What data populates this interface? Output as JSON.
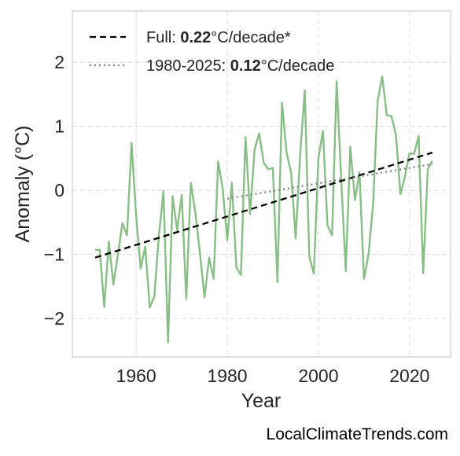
{
  "chart_data": {
    "type": "line",
    "xlabel": "Year",
    "ylabel": "Anomaly (°C)",
    "xlim": [
      1946,
      2029
    ],
    "ylim": [
      -2.6,
      2.8
    ],
    "xticks": [
      1960,
      1980,
      2000,
      2020
    ],
    "yticks": [
      -2,
      -1,
      0,
      1,
      2
    ],
    "ytick_labels": [
      "−2",
      "−1",
      "0",
      "1",
      "2"
    ],
    "grid": true,
    "legend_position": "top-left",
    "series": [
      {
        "type": "line",
        "color": "#88bd86",
        "x": [
          1951,
          1952,
          1953,
          1954,
          1955,
          1956,
          1957,
          1958,
          1959,
          1960,
          1961,
          1962,
          1963,
          1964,
          1965,
          1966,
          1967,
          1968,
          1969,
          1970,
          1971,
          1972,
          1973,
          1974,
          1975,
          1976,
          1977,
          1978,
          1979,
          1980,
          1981,
          1982,
          1983,
          1984,
          1985,
          1986,
          1987,
          1988,
          1989,
          1990,
          1991,
          1992,
          1993,
          1994,
          1995,
          1996,
          1997,
          1998,
          1999,
          2000,
          2001,
          2002,
          2003,
          2004,
          2005,
          2006,
          2007,
          2008,
          2009,
          2010,
          2011,
          2012,
          2013,
          2014,
          2015,
          2016,
          2017,
          2018,
          2019,
          2020,
          2021,
          2022,
          2023,
          2024,
          2025
        ],
        "y": [
          -0.93,
          -0.93,
          -1.82,
          -0.8,
          -1.47,
          -1.0,
          -0.51,
          -0.7,
          0.74,
          -0.4,
          -1.22,
          -0.88,
          -1.83,
          -1.65,
          -0.7,
          -0.01,
          -2.37,
          -0.09,
          -0.62,
          -0.07,
          -1.69,
          0.12,
          -0.35,
          -0.98,
          -1.67,
          -1.05,
          -1.38,
          0.45,
          0.03,
          -0.78,
          0.12,
          -1.2,
          -1.32,
          0.83,
          -0.37,
          0.64,
          0.89,
          0.43,
          0.33,
          0.35,
          -1.43,
          1.37,
          0.59,
          0.28,
          -0.75,
          0.57,
          1.56,
          -1.03,
          -1.3,
          0.5,
          0.93,
          -0.55,
          -0.7,
          1.7,
          0.18,
          -1.26,
          0.68,
          -0.15,
          0.28,
          -1.38,
          -1.0,
          -0.21,
          1.4,
          1.78,
          1.17,
          1.16,
          0.87,
          -0.06,
          0.22,
          0.58,
          0.57,
          0.85,
          -1.29,
          0.33,
          0.46
        ]
      },
      {
        "type": "trend",
        "style": "dashed",
        "color": "#000000",
        "x": [
          1951,
          2025
        ],
        "y": [
          -1.05,
          0.59
        ]
      },
      {
        "type": "trend",
        "style": "dotted",
        "color": "#808080",
        "x": [
          1980,
          2025
        ],
        "y": [
          -0.13,
          0.41
        ]
      }
    ]
  },
  "legend": [
    {
      "style": "dashed",
      "color": "#000000",
      "prefix": "Full: ",
      "value": "0.22",
      "suffix": "°C/decade*"
    },
    {
      "style": "dotted",
      "color": "#808080",
      "prefix": "1980-2025: ",
      "value": "0.12",
      "suffix": "°C/decade"
    }
  ],
  "watermark": "LocalClimateTrends.com"
}
